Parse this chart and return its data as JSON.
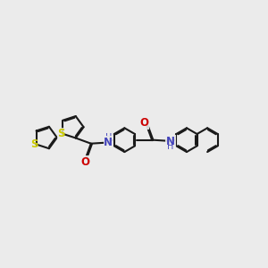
{
  "background_color": "#ebebeb",
  "bond_color": "#1a1a1a",
  "S_color": "#cccc00",
  "O_color": "#cc0000",
  "N_color": "#4444bb",
  "lw": 1.5,
  "fs": 8.5,
  "dbo": 0.045,
  "xlim": [
    -0.5,
    10.5
  ],
  "ylim": [
    3.0,
    7.5
  ]
}
